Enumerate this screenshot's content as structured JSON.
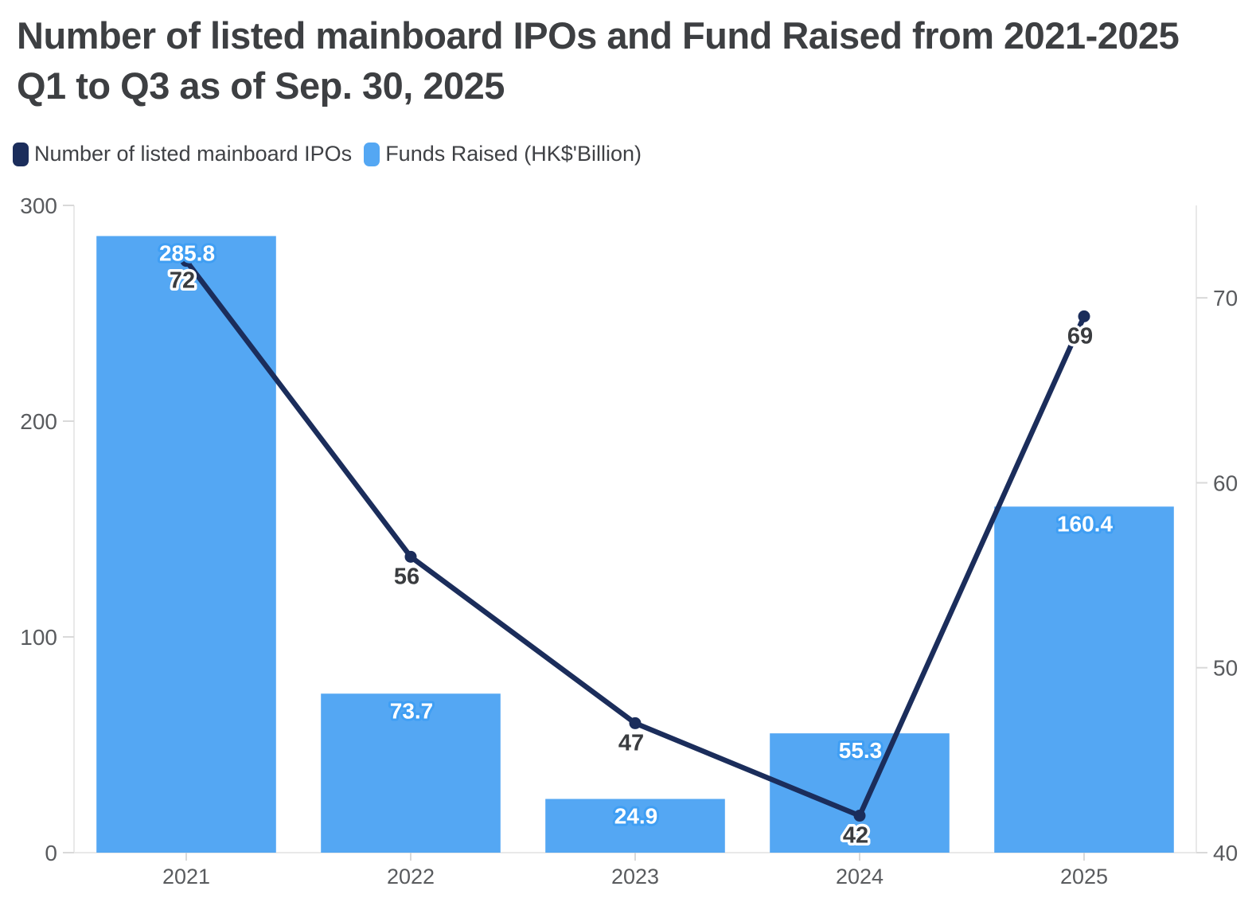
{
  "title": {
    "text": "Number of listed mainboard IPOs and Fund Raised from 2021-2025 Q1 to Q3 as of Sep. 30, 2025"
  },
  "legend": {
    "items": [
      {
        "label": "Number of listed mainboard IPOs",
        "color": "#1b2d5b"
      },
      {
        "label": "Funds Raised (HK$'Billion)",
        "color": "#54a7f3"
      }
    ]
  },
  "chart_data": {
    "type": "combo-bar-line",
    "title": "Number of listed mainboard IPOs and Fund Raised from 2021-2025 Q1 to Q3 as of Sep. 30, 2025",
    "categories": [
      "2021",
      "2022",
      "2023",
      "2024",
      "2025"
    ],
    "series": [
      {
        "name": "Number of listed mainboard IPOs",
        "type": "line",
        "axis": "right",
        "color": "#1b2d5b",
        "values": [
          72,
          56,
          47,
          42,
          69
        ],
        "label_color": "#3a3c3f",
        "label_halo": "#ffffff"
      },
      {
        "name": "Funds Raised (HK$'Billion)",
        "type": "bar",
        "axis": "left",
        "color": "#54a7f3",
        "values": [
          285.8,
          73.7,
          24.9,
          55.3,
          160.4
        ],
        "label_color": "#ffffff",
        "label_halo": "#3f9ef3"
      }
    ],
    "left_axis": {
      "ticks": [
        0,
        100,
        200,
        300
      ],
      "range": [
        0,
        300
      ]
    },
    "right_axis": {
      "ticks": [
        40,
        50,
        60,
        70
      ],
      "range": [
        40,
        75
      ]
    },
    "layout": {
      "grid_lines": "off",
      "legend_position": "top-left",
      "bar_width_fraction": 0.8
    },
    "style": {
      "axis_line_color": "#e9e9e9",
      "tick_color": "#d9d9d9",
      "axis_text_color": "#595b5e",
      "background": "#ffffff"
    }
  }
}
